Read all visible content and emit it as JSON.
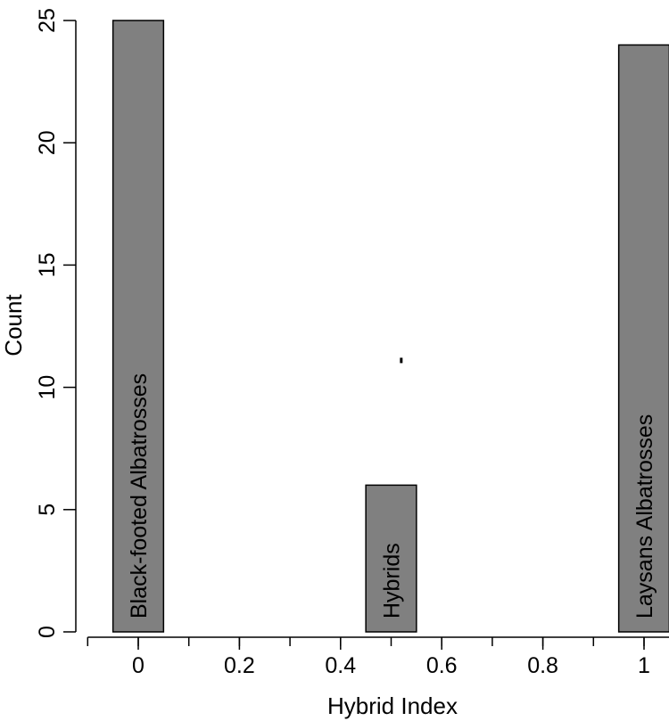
{
  "chart_data": {
    "type": "bar",
    "title": "",
    "xlabel": "Hybrid Index",
    "ylabel": "Count",
    "xlim": [
      -0.1,
      1.05
    ],
    "ylim": [
      0,
      25
    ],
    "grid": false,
    "bar_color": "#808080",
    "bar_width": 0.1,
    "x_ticks": [
      "0",
      "0.2",
      "0.4",
      "0.6",
      "0.8",
      "1"
    ],
    "y_ticks": [
      "0",
      "5",
      "10",
      "15",
      "20",
      "25"
    ],
    "bars": [
      {
        "x": 0,
        "value": 25,
        "label": "Black-footed Albatrosses"
      },
      {
        "x": 0.5,
        "value": 6,
        "label": "Hybrids"
      },
      {
        "x": 1,
        "value": 24,
        "label": "Laysans Albatrosses"
      }
    ],
    "point": {
      "x": 0.52,
      "y": 11.1
    }
  }
}
